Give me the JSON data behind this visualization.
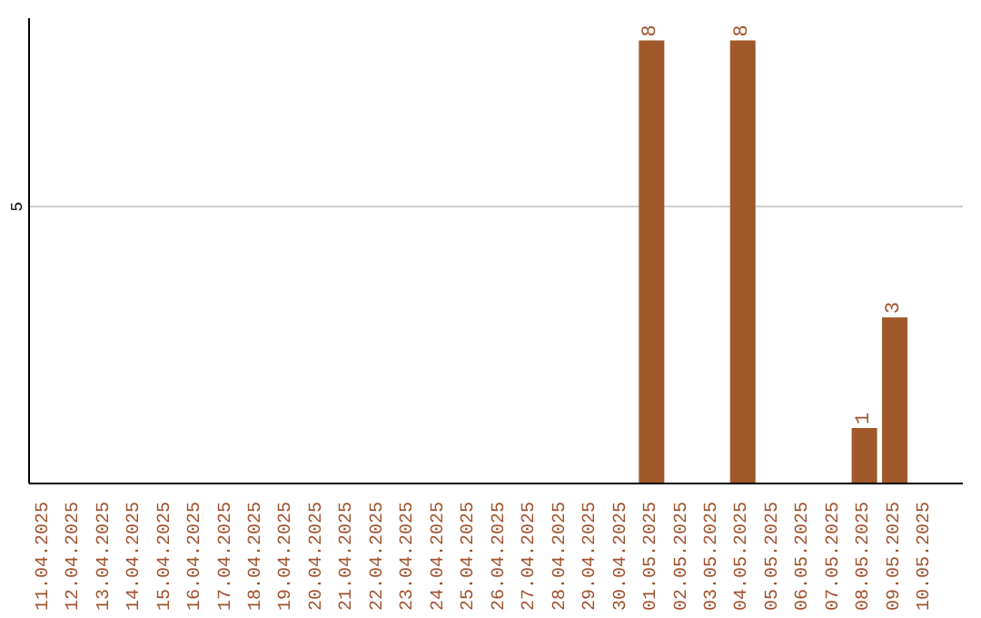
{
  "chart_data": {
    "type": "bar",
    "categories": [
      "11.04.2025",
      "12.04.2025",
      "13.04.2025",
      "14.04.2025",
      "15.04.2025",
      "16.04.2025",
      "17.04.2025",
      "18.04.2025",
      "19.04.2025",
      "20.04.2025",
      "21.04.2025",
      "22.04.2025",
      "23.04.2025",
      "24.04.2025",
      "25.04.2025",
      "26.04.2025",
      "27.04.2025",
      "28.04.2025",
      "29.04.2025",
      "30.04.2025",
      "01.05.2025",
      "02.05.2025",
      "03.05.2025",
      "04.05.2025",
      "05.05.2025",
      "06.05.2025",
      "07.05.2025",
      "08.05.2025",
      "09.05.2025",
      "10.05.2025"
    ],
    "values": [
      null,
      null,
      null,
      null,
      null,
      null,
      null,
      null,
      null,
      null,
      null,
      null,
      null,
      null,
      null,
      null,
      null,
      null,
      null,
      null,
      8,
      null,
      null,
      8,
      null,
      null,
      null,
      1,
      3,
      null
    ],
    "color": "#a0572a",
    "ylim": [
      0,
      8.4
    ],
    "yticks": [
      5
    ],
    "grid": "y",
    "data_labels": true
  }
}
